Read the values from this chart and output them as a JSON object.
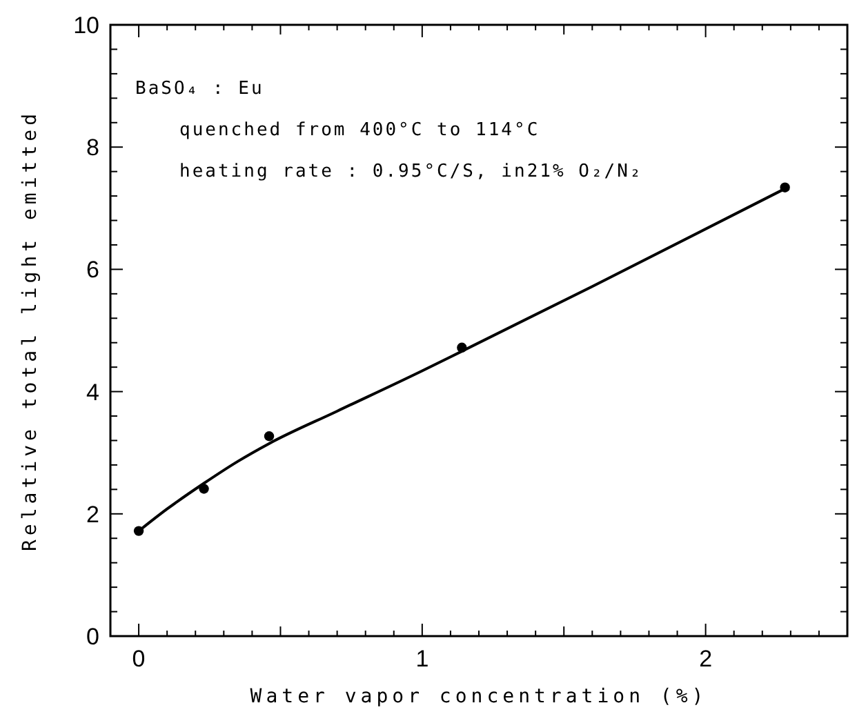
{
  "chart_data": {
    "type": "scatter",
    "xlabel": "Water vapor concentration (%)",
    "ylabel": "Relative total light emitted",
    "annotations": [
      "BaSO₄ : Eu",
      "quenched from 400°C to 114°C",
      "heating rate : 0.95°C/S, in21% O₂/N₂"
    ],
    "grid": false,
    "series": [
      {
        "color": "#000000",
        "marker": "circle",
        "x": [
          0,
          0.23,
          0.46,
          1.14,
          2.28
        ],
        "values": [
          1.72,
          2.41,
          3.27,
          4.72,
          7.34
        ]
      },
      {
        "type": "line",
        "color": "#000000",
        "marker": "none",
        "line_style": "solid",
        "x": [
          0,
          0.1,
          0.23,
          0.35,
          0.46,
          0.7,
          1.0,
          1.14,
          1.6,
          2.28
        ],
        "values": [
          1.72,
          2.08,
          2.5,
          2.86,
          3.15,
          3.68,
          4.34,
          4.66,
          5.72,
          7.32
        ]
      }
    ],
    "xlim": [
      -0.1,
      2.5
    ],
    "ylim": [
      0,
      10
    ],
    "xticks": [
      0,
      {
        "value": 0.1,
        "label": null
      },
      {
        "value": 0.2,
        "label": null
      },
      {
        "value": 0.3,
        "label": null
      },
      {
        "value": 0.4,
        "label": null
      },
      {
        "value": 0.5,
        "label": null
      },
      {
        "value": 0.6,
        "label": null
      },
      {
        "value": 0.7,
        "label": null
      },
      {
        "value": 0.8,
        "label": null
      },
      {
        "value": 0.9,
        "label": null
      },
      1,
      {
        "value": 1.1,
        "label": null
      },
      {
        "value": 1.2,
        "label": null
      },
      {
        "value": 1.3,
        "label": null
      },
      {
        "value": 1.4,
        "label": null
      },
      {
        "value": 1.5,
        "label": null
      },
      {
        "value": 1.6,
        "label": null
      },
      {
        "value": 1.7,
        "label": null
      },
      {
        "value": 1.8,
        "label": null
      },
      {
        "value": 1.9,
        "label": null
      },
      2,
      {
        "value": 2.1,
        "label": null
      },
      {
        "value": 2.2,
        "label": null
      },
      {
        "value": 2.3,
        "label": null
      },
      {
        "value": 2.4,
        "label": null
      }
    ],
    "yticks": [
      0,
      {
        "value": 0.4,
        "label": null
      },
      {
        "value": 0.8,
        "label": null
      },
      {
        "value": 1.2,
        "label": null
      },
      {
        "value": 1.6,
        "label": null
      },
      2,
      {
        "value": 2.4,
        "label": null
      },
      {
        "value": 2.8,
        "label": null
      },
      {
        "value": 3.2,
        "label": null
      },
      {
        "value": 3.6,
        "label": null
      },
      4,
      {
        "value": 4.4,
        "label": null
      },
      {
        "value": 4.8,
        "label": null
      },
      {
        "value": 5.2,
        "label": null
      },
      {
        "value": 5.6,
        "label": null
      },
      6,
      {
        "value": 6.4,
        "label": null
      },
      {
        "value": 6.8,
        "label": null
      },
      {
        "value": 7.2,
        "label": null
      },
      {
        "value": 7.6,
        "label": null
      },
      8,
      {
        "value": 8.4,
        "label": null
      },
      {
        "value": 8.8,
        "label": null
      },
      {
        "value": 9.2,
        "label": null
      },
      {
        "value": 9.6,
        "label": null
      },
      10
    ]
  }
}
